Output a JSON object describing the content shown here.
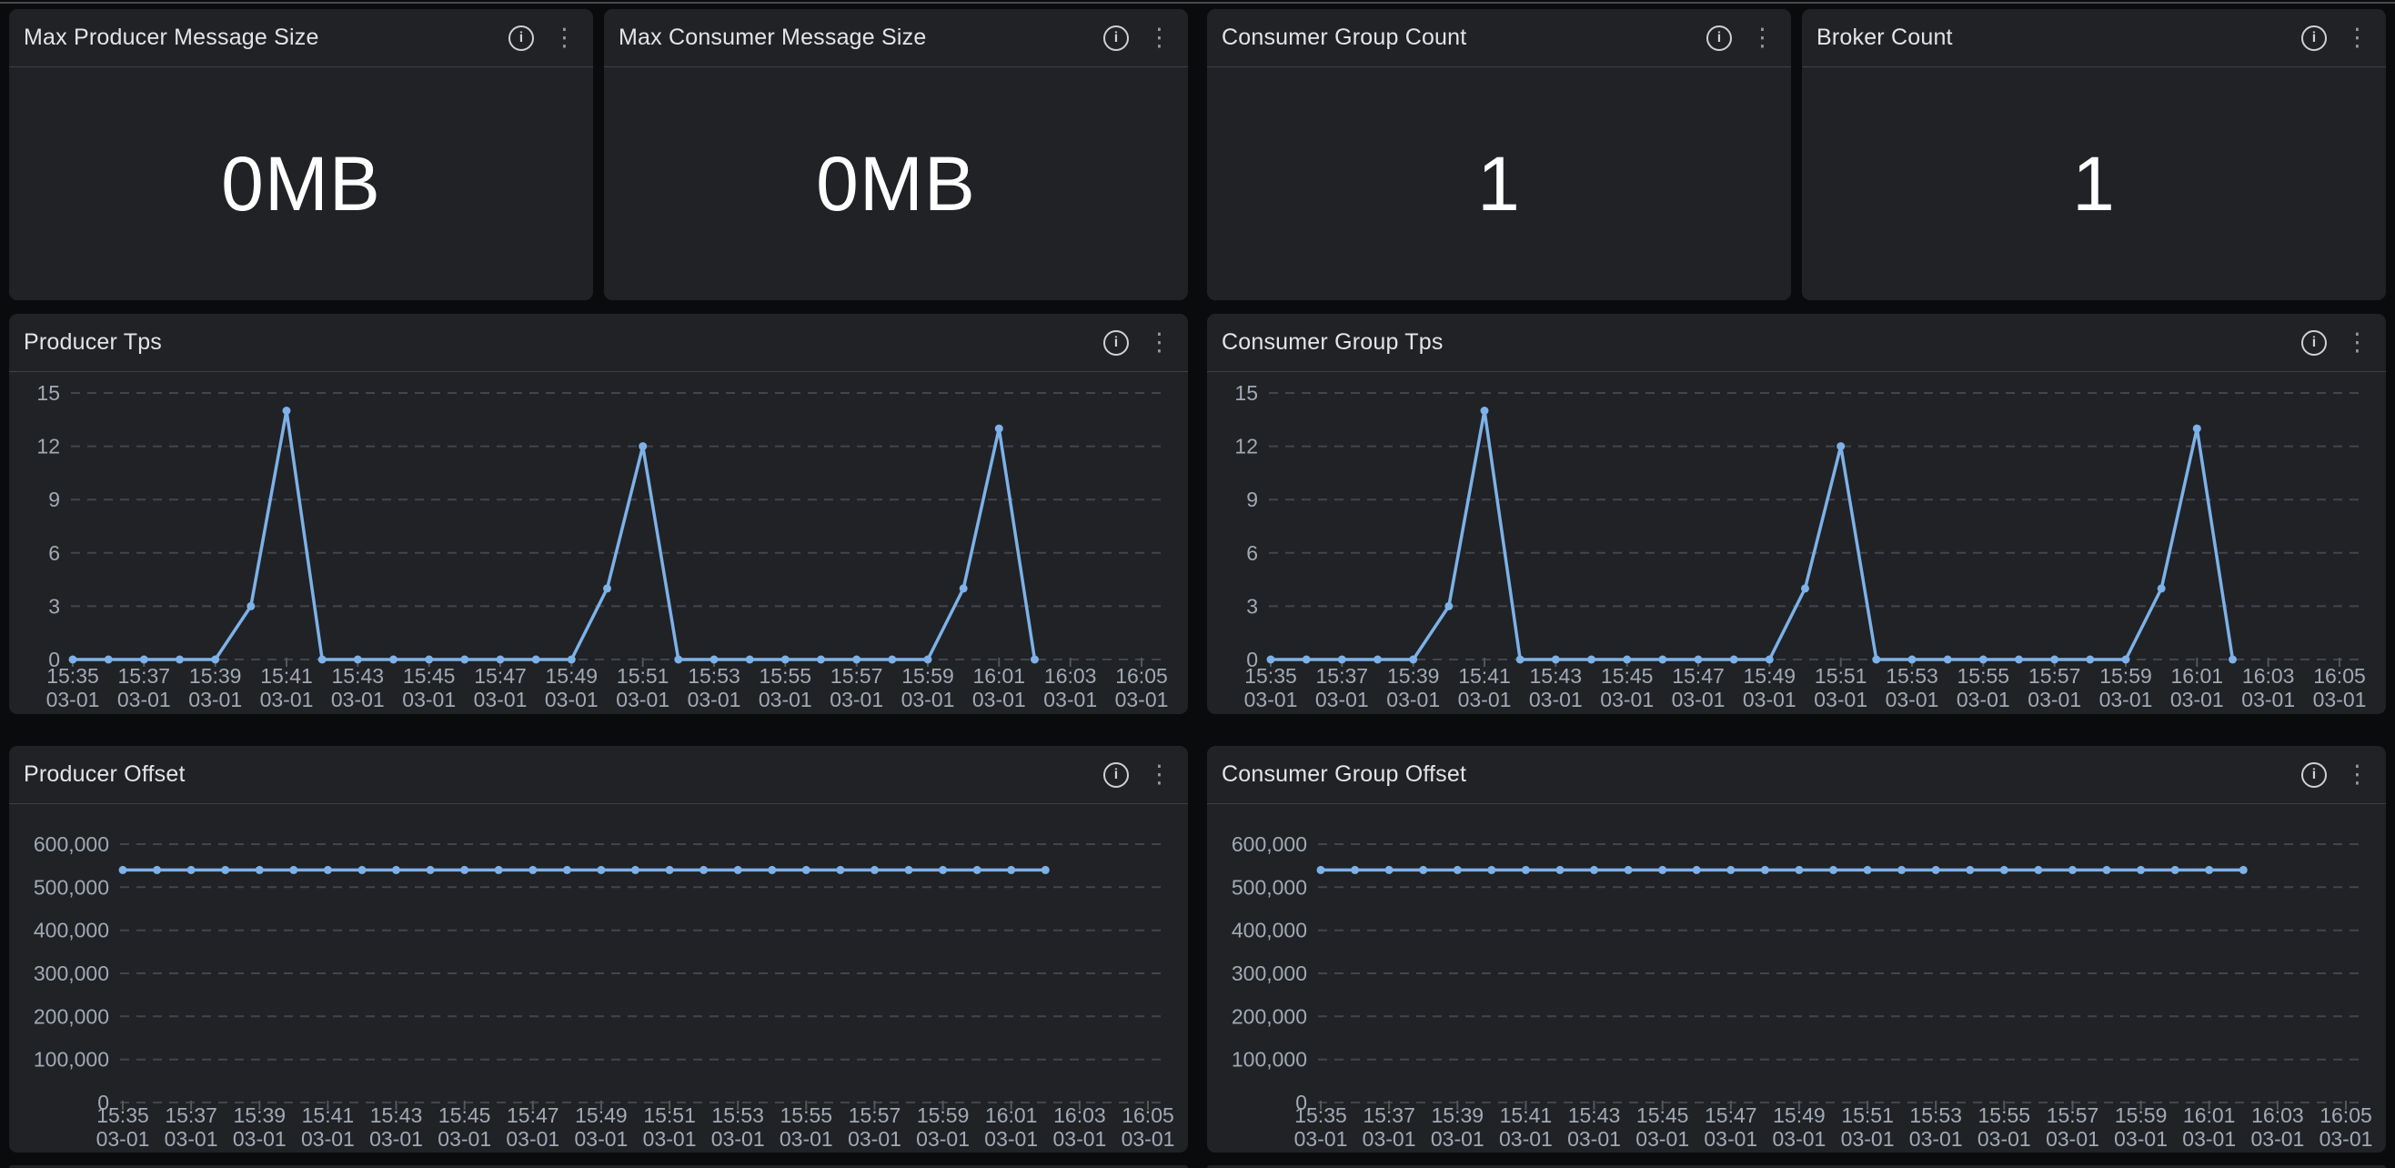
{
  "icons": {
    "info_glyph": "i",
    "menu_glyph": "⋮"
  },
  "colors": {
    "page_bg": "#0a0b0c",
    "panel_bg": "#202226",
    "series_blue": "#7db1e8",
    "grid": "#42454b",
    "axis_text": "#a2a9b4",
    "title_text": "#e3e4e6"
  },
  "panels": {
    "stat": [
      {
        "title": "Max Producer Message Size",
        "value": "0MB"
      },
      {
        "title": "Max Consumer Message Size",
        "value": "0MB"
      },
      {
        "title": "Consumer Group Count",
        "value": "1"
      },
      {
        "title": "Broker Count",
        "value": "1"
      }
    ]
  },
  "chart_data": [
    {
      "panel_title": "Producer Tps",
      "type": "line",
      "kind": "tps",
      "series_color": "#7db1e8",
      "x_start": "15:35",
      "x_step_minutes": 1,
      "x_date": "03-01",
      "x_tick_times": [
        "15:35",
        "15:37",
        "15:39",
        "15:41",
        "15:43",
        "15:45",
        "15:47",
        "15:49",
        "15:51",
        "15:53",
        "15:55",
        "15:57",
        "15:59",
        "16:01",
        "16:03",
        "16:05"
      ],
      "y_ticks": [
        0,
        3,
        6,
        9,
        12,
        15
      ],
      "y_tick_labels": [
        "0",
        "3",
        "6",
        "9",
        "12",
        "15"
      ],
      "ylim": [
        0,
        15
      ],
      "grid": "dashed",
      "legend": "none",
      "values": [
        0,
        0,
        0,
        0,
        0,
        3,
        14,
        0,
        0,
        0,
        0,
        0,
        0,
        0,
        0,
        4,
        12,
        0,
        0,
        0,
        0,
        0,
        0,
        0,
        0,
        4,
        13,
        0
      ]
    },
    {
      "panel_title": "Consumer Group Tps",
      "type": "line",
      "kind": "tps",
      "series_color": "#7db1e8",
      "x_start": "15:35",
      "x_step_minutes": 1,
      "x_date": "03-01",
      "x_tick_times": [
        "15:35",
        "15:37",
        "15:39",
        "15:41",
        "15:43",
        "15:45",
        "15:47",
        "15:49",
        "15:51",
        "15:53",
        "15:55",
        "15:57",
        "15:59",
        "16:01",
        "16:03",
        "16:05"
      ],
      "y_ticks": [
        0,
        3,
        6,
        9,
        12,
        15
      ],
      "y_tick_labels": [
        "0",
        "3",
        "6",
        "9",
        "12",
        "15"
      ],
      "ylim": [
        0,
        15
      ],
      "grid": "dashed",
      "legend": "none",
      "values": [
        0,
        0,
        0,
        0,
        0,
        3,
        14,
        0,
        0,
        0,
        0,
        0,
        0,
        0,
        0,
        4,
        12,
        0,
        0,
        0,
        0,
        0,
        0,
        0,
        0,
        4,
        13,
        0
      ]
    },
    {
      "panel_title": "Producer Offset",
      "type": "line",
      "kind": "offset",
      "series_color": "#7db1e8",
      "x_start": "15:35",
      "x_step_minutes": 1,
      "x_date": "03-01",
      "x_tick_times": [
        "15:35",
        "15:37",
        "15:39",
        "15:41",
        "15:43",
        "15:45",
        "15:47",
        "15:49",
        "15:51",
        "15:53",
        "15:55",
        "15:57",
        "15:59",
        "16:01",
        "16:03",
        "16:05"
      ],
      "y_ticks": [
        0,
        100000,
        200000,
        300000,
        400000,
        500000,
        600000
      ],
      "y_tick_labels": [
        "0",
        "100,000",
        "200,000",
        "300,000",
        "400,000",
        "500,000",
        "600,000"
      ],
      "ylim": [
        0,
        600000
      ],
      "grid": "dashed",
      "legend": "none",
      "values": [
        540000,
        540000,
        540000,
        540000,
        540000,
        540000,
        540000,
        540000,
        540000,
        540000,
        540000,
        540000,
        540000,
        540000,
        540000,
        540000,
        540000,
        540000,
        540000,
        540000,
        540000,
        540000,
        540000,
        540000,
        540000,
        540000,
        540000,
        540000
      ]
    },
    {
      "panel_title": "Consumer Group Offset",
      "type": "line",
      "kind": "offset",
      "series_color": "#7db1e8",
      "x_start": "15:35",
      "x_step_minutes": 1,
      "x_date": "03-01",
      "x_tick_times": [
        "15:35",
        "15:37",
        "15:39",
        "15:41",
        "15:43",
        "15:45",
        "15:47",
        "15:49",
        "15:51",
        "15:53",
        "15:55",
        "15:57",
        "15:59",
        "16:01",
        "16:03",
        "16:05"
      ],
      "y_ticks": [
        0,
        100000,
        200000,
        300000,
        400000,
        500000,
        600000
      ],
      "y_tick_labels": [
        "0",
        "100,000",
        "200,000",
        "300,000",
        "400,000",
        "500,000",
        "600,000"
      ],
      "ylim": [
        0,
        600000
      ],
      "grid": "dashed",
      "legend": "none",
      "values": [
        540000,
        540000,
        540000,
        540000,
        540000,
        540000,
        540000,
        540000,
        540000,
        540000,
        540000,
        540000,
        540000,
        540000,
        540000,
        540000,
        540000,
        540000,
        540000,
        540000,
        540000,
        540000,
        540000,
        540000,
        540000,
        540000,
        540000,
        540000
      ]
    }
  ]
}
